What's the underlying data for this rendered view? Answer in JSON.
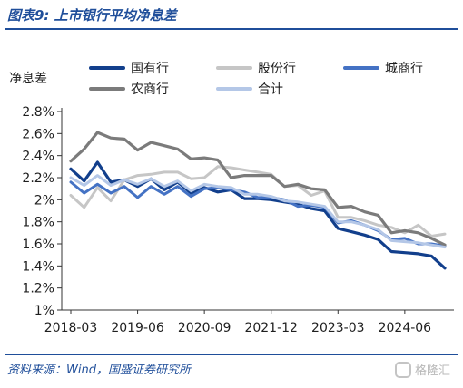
{
  "figure": {
    "title": "图表9:  上市银行平均净息差",
    "unit_label": "净息差",
    "source": "资料来源：Wind，国盛证券研究所",
    "watermark": "格隆汇"
  },
  "chart_data": {
    "type": "line",
    "ylabel": "净息差",
    "ylim": [
      1.0,
      2.8
    ],
    "yticks": [
      "1%",
      "1.2%",
      "1.4%",
      "1.6%",
      "1.8%",
      "2%",
      "2.2%",
      "2.4%",
      "2.6%",
      "2.8%"
    ],
    "xtick_labels": [
      "2018-03",
      "2019-06",
      "2020-09",
      "2021-12",
      "2023-03",
      "2024-06"
    ],
    "xtick_index": [
      0,
      5,
      10,
      15,
      20,
      25
    ],
    "legend_position": "top",
    "x": [
      "2018-03",
      "2018-06",
      "2018-09",
      "2018-12",
      "2019-03",
      "2019-06",
      "2019-09",
      "2019-12",
      "2020-03",
      "2020-06",
      "2020-09",
      "2020-12",
      "2021-03",
      "2021-06",
      "2021-09",
      "2021-12",
      "2022-03",
      "2022-06",
      "2022-09",
      "2022-12",
      "2023-03",
      "2023-06",
      "2023-09",
      "2023-12",
      "2024-03",
      "2024-06",
      "2024-09",
      "2024-12",
      "2025-03"
    ],
    "series": [
      {
        "name": "国有行",
        "color": "#123f8c",
        "width": 3.2,
        "values": [
          2.28,
          2.17,
          2.34,
          2.16,
          2.18,
          2.12,
          2.19,
          2.09,
          2.16,
          2.06,
          2.11,
          2.07,
          2.09,
          2.01,
          2.01,
          2.0,
          1.98,
          1.96,
          1.92,
          1.9,
          1.74,
          1.71,
          1.68,
          1.64,
          1.53,
          1.52,
          1.51,
          1.49,
          1.38
        ]
      },
      {
        "name": "股份行",
        "color": "#c6c6c6",
        "width": 3.0,
        "values": [
          2.04,
          1.93,
          2.11,
          1.99,
          2.18,
          2.22,
          2.23,
          2.25,
          2.25,
          2.19,
          2.2,
          2.3,
          2.29,
          2.27,
          2.25,
          2.23,
          2.12,
          2.13,
          2.04,
          2.08,
          1.84,
          1.84,
          1.81,
          1.77,
          1.75,
          1.7,
          1.77,
          1.67,
          1.69
        ]
      },
      {
        "name": "城商行",
        "color": "#4472c4",
        "width": 3.0,
        "values": [
          2.16,
          2.06,
          2.14,
          2.06,
          2.12,
          2.02,
          2.12,
          2.05,
          2.12,
          2.03,
          2.1,
          2.11,
          2.09,
          2.07,
          2.02,
          2.02,
          2.0,
          1.94,
          1.95,
          1.93,
          1.79,
          1.81,
          1.77,
          1.72,
          1.64,
          1.65,
          1.6,
          1.6,
          1.58
        ]
      },
      {
        "name": "农商行",
        "color": "#7b7b7b",
        "width": 3.2,
        "values": [
          2.35,
          2.46,
          2.61,
          2.56,
          2.55,
          2.45,
          2.52,
          2.49,
          2.46,
          2.37,
          2.38,
          2.36,
          2.2,
          2.22,
          2.22,
          2.22,
          2.12,
          2.14,
          2.1,
          2.09,
          1.93,
          1.94,
          1.89,
          1.86,
          1.7,
          1.72,
          1.7,
          1.65,
          1.59
        ]
      },
      {
        "name": "合计",
        "color": "#b4c7e7",
        "width": 3.0,
        "values": [
          2.2,
          2.13,
          2.22,
          2.13,
          2.18,
          2.14,
          2.19,
          2.12,
          2.17,
          2.08,
          2.14,
          2.12,
          2.11,
          2.05,
          2.05,
          2.03,
          1.99,
          1.98,
          1.96,
          1.94,
          1.8,
          1.8,
          1.77,
          1.73,
          1.63,
          1.62,
          1.61,
          1.59,
          1.57
        ]
      }
    ]
  }
}
